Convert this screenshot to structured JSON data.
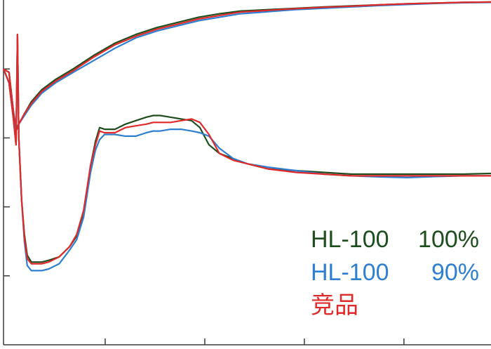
{
  "chart_data": {
    "type": "line",
    "title": "",
    "xlabel": "",
    "ylabel": "",
    "xlim": [
      0,
      700
    ],
    "ylim": [
      0,
      100
    ],
    "x_ticks": [
      146,
      289,
      432,
      575
    ],
    "y_ticks": [
      20,
      40,
      60,
      80
    ],
    "grid": false,
    "legend_position": "bottom-right",
    "series": [
      {
        "name": "HL-100 100%",
        "label_name": "HL-100",
        "label_value": "100%",
        "color": "#1e4d1e",
        "x": [
          0,
          8,
          14,
          18,
          20,
          22,
          26,
          30,
          34,
          40,
          46,
          55,
          65,
          80,
          95,
          105,
          115,
          125,
          132,
          138,
          145,
          160,
          175,
          190,
          205,
          215,
          225,
          240,
          255,
          270,
          282,
          295,
          310,
          330,
          350,
          380,
          420,
          460,
          500,
          540,
          580,
          620,
          660,
          700
        ],
        "y": [
          80,
          76,
          66,
          58,
          90,
          60,
          42,
          32,
          26,
          24,
          24,
          24,
          24.5,
          25.5,
          28.5,
          31.5,
          38,
          52,
          59,
          63,
          62.5,
          62.5,
          64,
          65,
          66,
          66.5,
          66.5,
          66,
          65.5,
          65,
          63,
          58,
          55.5,
          54,
          52.5,
          51,
          50.5,
          50,
          49.5,
          49.5,
          49.5,
          49.5,
          49.5,
          49.7
        ]
      },
      {
        "name": "HL-100 90%",
        "label_name": "HL-100",
        "label_value": "90%",
        "color": "#2f7fd0",
        "x": [
          0,
          8,
          14,
          18,
          20,
          22,
          26,
          30,
          34,
          40,
          46,
          55,
          65,
          80,
          95,
          105,
          115,
          125,
          132,
          138,
          145,
          160,
          175,
          190,
          205,
          215,
          225,
          240,
          255,
          270,
          282,
          295,
          310,
          330,
          350,
          380,
          420,
          460,
          500,
          540,
          580,
          620,
          660,
          700
        ],
        "y": [
          80,
          76,
          66,
          60,
          90,
          60,
          42,
          30,
          23,
          21.5,
          21.5,
          21.5,
          22,
          23.5,
          27.5,
          30.5,
          37,
          50,
          56.5,
          59.5,
          61,
          61,
          60.5,
          60.5,
          61.5,
          62,
          62,
          62.5,
          62.5,
          62,
          61.5,
          60.5,
          57,
          54,
          52.5,
          51.5,
          50.5,
          49.5,
          49,
          48.7,
          48.5,
          48.8,
          49,
          49
        ]
      },
      {
        "name": "竞品",
        "label_name": "竞品",
        "label_value": "",
        "color": "#e02a2a",
        "x": [
          0,
          8,
          14,
          18,
          20,
          22,
          26,
          30,
          34,
          40,
          46,
          55,
          65,
          80,
          95,
          105,
          115,
          125,
          132,
          138,
          145,
          160,
          175,
          190,
          205,
          215,
          225,
          240,
          255,
          270,
          282,
          295,
          310,
          330,
          350,
          380,
          420,
          460,
          500,
          540,
          580,
          620,
          660,
          700
        ],
        "y": [
          80,
          76,
          66,
          58,
          90,
          60,
          42,
          31,
          25,
          23.5,
          23.5,
          23.5,
          24,
          25.5,
          28.5,
          32,
          39,
          52,
          58,
          62,
          61.5,
          61.5,
          63,
          63.5,
          64,
          64.5,
          64.5,
          64.5,
          65,
          65.5,
          64.5,
          61,
          55.5,
          53.5,
          52.5,
          51,
          50,
          49.5,
          49,
          49,
          49,
          49,
          49,
          49
        ]
      },
      {
        "name": "",
        "label_name": "",
        "label_value": "",
        "color": "#1e4d1e",
        "x": [
          0,
          8,
          14,
          18,
          22,
          30,
          40,
          55,
          75,
          100,
          130,
          160,
          190,
          220,
          250,
          280,
          310,
          340,
          380,
          420,
          460,
          500,
          540,
          580,
          620,
          660,
          700
        ],
        "y": [
          80,
          79,
          68,
          62,
          64,
          67,
          70.5,
          74,
          77,
          80,
          84,
          87.5,
          90,
          92,
          93.5,
          95,
          96,
          96.8,
          97.2,
          97.6,
          98,
          98.3,
          98.6,
          98.9,
          99.1,
          99.3,
          99.4
        ]
      },
      {
        "name": "",
        "label_name": "",
        "label_value": "",
        "color": "#2f7fd0",
        "x": [
          0,
          8,
          14,
          18,
          22,
          30,
          40,
          55,
          75,
          100,
          130,
          160,
          190,
          220,
          250,
          280,
          310,
          340,
          380,
          420,
          460,
          500,
          540,
          580,
          620,
          660,
          700
        ],
        "y": [
          80,
          79,
          68,
          63,
          64,
          66.5,
          69.5,
          73,
          76,
          79,
          82.5,
          86,
          89,
          91,
          92.5,
          94,
          95,
          96,
          96.6,
          97.2,
          97.6,
          98,
          98.4,
          98.7,
          99,
          99.2,
          99.3
        ]
      },
      {
        "name": "",
        "label_name": "",
        "label_value": "",
        "color": "#e02a2a",
        "x": [
          0,
          8,
          14,
          18,
          22,
          30,
          40,
          55,
          75,
          100,
          130,
          160,
          190,
          220,
          250,
          280,
          310,
          340,
          380,
          420,
          460,
          500,
          540,
          580,
          620,
          660,
          700
        ],
        "y": [
          80,
          79,
          68,
          62,
          64,
          67,
          70,
          73.5,
          76.5,
          79.5,
          83.5,
          87,
          89.5,
          91.5,
          93,
          94.5,
          95.5,
          96.5,
          97,
          97.5,
          97.9,
          98.2,
          98.6,
          98.9,
          99.1,
          99.3,
          99.4
        ]
      }
    ]
  }
}
